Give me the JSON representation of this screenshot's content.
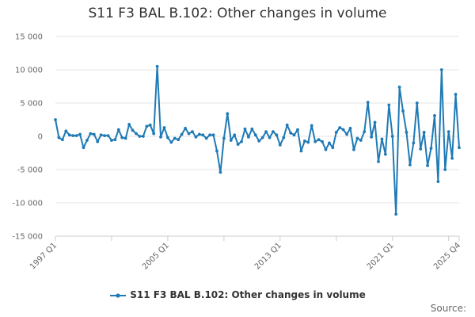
{
  "chart_data": {
    "type": "line",
    "title": "S11 F3 BAL B.102: Other changes in volume",
    "xlabel": "",
    "ylabel": "",
    "ylim": [
      -15000,
      15000
    ],
    "yticks": [
      15000,
      10000,
      5000,
      0,
      -5000,
      -10000,
      -15000
    ],
    "ytick_labels": [
      "15 000",
      "10 000",
      "5 000",
      "0",
      "-5 000",
      "-10 000",
      "-15 000"
    ],
    "x_range": [
      "1997 Q1",
      "2025 Q4"
    ],
    "xtick_labels": [
      "1997 Q1",
      "2005 Q1",
      "2013 Q1",
      "2021 Q1",
      "2025 Q4"
    ],
    "xtick_index": [
      0,
      32,
      64,
      96,
      115
    ],
    "grid": true,
    "legend": "bottom",
    "color": "#1f7ab5",
    "series": [
      {
        "name": "S11 F3 BAL B.102: Other changes in volume",
        "values": [
          2500,
          -200,
          -500,
          800,
          200,
          100,
          100,
          300,
          -1700,
          -600,
          400,
          300,
          -800,
          200,
          100,
          100,
          -600,
          -500,
          1000,
          -200,
          -300,
          1800,
          900,
          400,
          0,
          0,
          1500,
          1700,
          400,
          10500,
          -100,
          1300,
          -200,
          -900,
          -300,
          -500,
          300,
          1200,
          400,
          700,
          -100,
          300,
          200,
          -300,
          200,
          200,
          -2200,
          -5400,
          -300,
          3400,
          -600,
          200,
          -1200,
          -800,
          1100,
          -100,
          1100,
          200,
          -700,
          -200,
          700,
          -200,
          700,
          200,
          -1300,
          -200,
          1700,
          500,
          200,
          1000,
          -2200,
          -700,
          -900,
          1600,
          -800,
          -500,
          -800,
          -2000,
          -1000,
          -1700,
          600,
          1300,
          1000,
          300,
          1200,
          -2000,
          -300,
          -600,
          700,
          5100,
          -100,
          2100,
          -3800,
          -400,
          -2700,
          4700,
          0,
          -11700,
          7400,
          3800,
          600,
          -4300,
          -1000,
          5000,
          -1900,
          600,
          -4400,
          -1800,
          3100,
          -6800,
          10000,
          -5000,
          700,
          -3300,
          6300,
          -1700
        ]
      }
    ]
  },
  "credits": "Source:"
}
